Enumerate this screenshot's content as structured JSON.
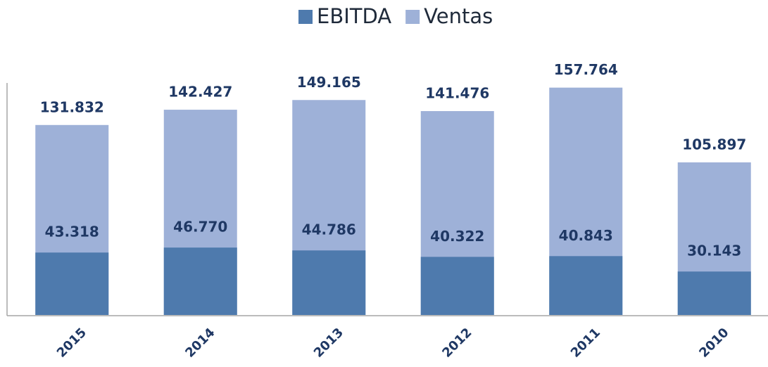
{
  "chart_data": {
    "type": "bar",
    "categories": [
      "2015",
      "2014",
      "2013",
      "2012",
      "2011",
      "2010"
    ],
    "series": [
      {
        "name": "Ventas",
        "color": "#9eb1d8",
        "values": [
          131832,
          142427,
          149165,
          141476,
          157764,
          105897
        ],
        "value_labels": [
          "131.832",
          "142.427",
          "149.165",
          "141.476",
          "157.764",
          "105.897"
        ]
      },
      {
        "name": "EBITDA",
        "color": "#4e7aad",
        "values": [
          43318,
          46770,
          44786,
          40322,
          40843,
          30143
        ],
        "value_labels": [
          "43.318",
          "46.770",
          "44.786",
          "40.322",
          "40.843",
          "30.143"
        ]
      }
    ],
    "ylim": [
      0,
      161000
    ]
  }
}
